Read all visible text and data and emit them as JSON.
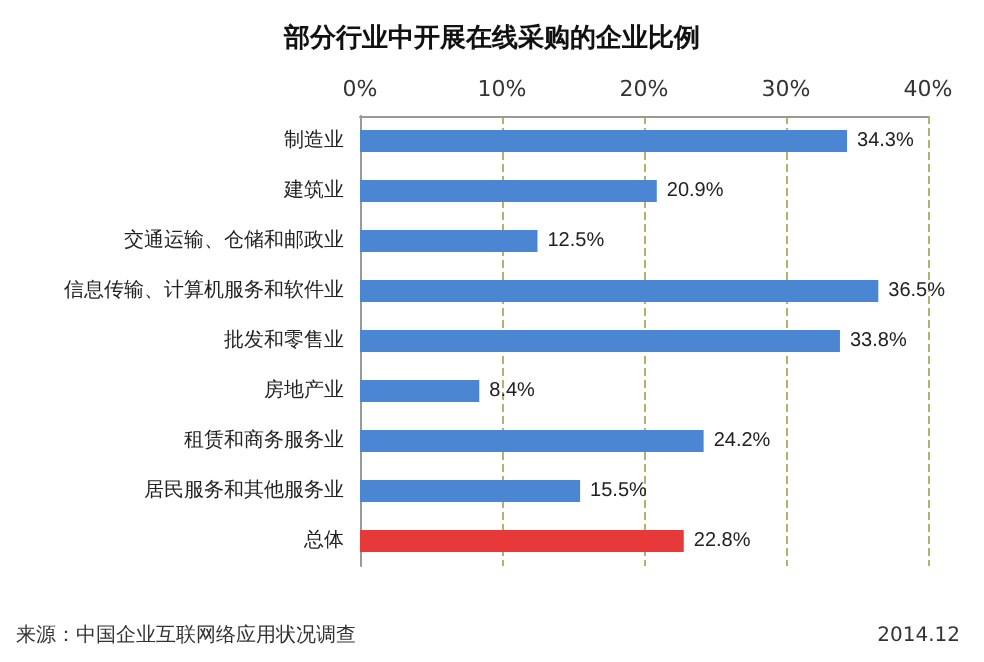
{
  "chart_data": {
    "type": "bar",
    "orientation": "horizontal",
    "title": "部分行业中开展在线采购的企业比例",
    "categories": [
      "制造业",
      "建筑业",
      "交通运输、仓储和邮政业",
      "信息传输、计算机服务和软件业",
      "批发和零售业",
      "房地产业",
      "租赁和商务服务业",
      "居民服务和其他服务业",
      "总体"
    ],
    "values": [
      34.3,
      20.9,
      12.5,
      36.5,
      33.8,
      8.4,
      24.2,
      15.5,
      22.8
    ],
    "colors": [
      "#4a86d2",
      "#4a86d2",
      "#4a86d2",
      "#4a86d2",
      "#4a86d2",
      "#4a86d2",
      "#4a86d2",
      "#4a86d2",
      "#e8393a"
    ],
    "value_labels": [
      "34.3%",
      "20.9%",
      "12.5%",
      "36.5%",
      "33.8%",
      "8.4%",
      "24.2%",
      "15.5%",
      "22.8%"
    ],
    "xlim": [
      0,
      40
    ],
    "xticks": [
      {
        "value": 0,
        "label": "0%"
      },
      {
        "value": 10,
        "label": "10%"
      },
      {
        "value": 20,
        "label": "20%"
      },
      {
        "value": 30,
        "label": "30%"
      },
      {
        "value": 40,
        "label": "40%"
      }
    ],
    "grid": "x",
    "annotations": [
      "来源：中国企业互联网络应用状况调查",
      "2014.12"
    ]
  }
}
